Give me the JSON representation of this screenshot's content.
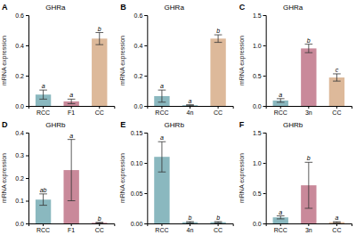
{
  "chart_data": [
    {
      "type": "bar",
      "label": "A",
      "title": "GHRa",
      "ylabel": "mRNA expression",
      "categories": [
        "RCC",
        "F1",
        "CC"
      ],
      "values": [
        0.075,
        0.03,
        0.445
      ],
      "errors": [
        0.03,
        0.015,
        0.04
      ],
      "annotations": [
        "a",
        "a",
        "b"
      ],
      "colors": [
        "#8ab8bf",
        "#c9899a",
        "#ddb99a"
      ],
      "ylim": [
        0,
        0.6
      ],
      "yticks": [
        {
          "value": 0.0,
          "label": "0.0"
        },
        0.2,
        0.4,
        0.6
      ]
    },
    {
      "type": "bar",
      "label": "B",
      "title": "GHRa",
      "ylabel": "mRNA expression",
      "categories": [
        "RCC",
        "4n",
        "CC"
      ],
      "values": [
        0.065,
        0.005,
        0.445
      ],
      "errors": [
        0.04,
        0.003,
        0.025
      ],
      "annotations": [
        "a",
        "a",
        "b"
      ],
      "colors": [
        "#8ab8bf",
        "#8ab8bf",
        "#ddb99a"
      ],
      "ylim": [
        0,
        0.6
      ],
      "yticks": [
        {
          "value": 0.0,
          "label": "0.0"
        },
        0.2,
        0.4,
        0.6
      ]
    },
    {
      "type": "bar",
      "label": "C",
      "title": "GHRa",
      "ylabel": "mRNA expression",
      "categories": [
        "RCC",
        "3n",
        "CC"
      ],
      "values": [
        0.09,
        0.95,
        0.47
      ],
      "errors": [
        0.03,
        0.07,
        0.06
      ],
      "annotations": [
        "a",
        "b",
        "c"
      ],
      "colors": [
        "#8ab8bf",
        "#c9899a",
        "#ddb99a"
      ],
      "ylim": [
        0,
        1.5
      ],
      "yticks": [
        {
          "value": 0.0,
          "label": "0.0"
        },
        0.5,
        {
          "value": 1.0,
          "label": "1.0"
        },
        1.5
      ]
    },
    {
      "type": "bar",
      "label": "D",
      "title": "GHRb",
      "ylabel": "mRNA expression",
      "categories": [
        "RCC",
        "F1",
        "CC"
      ],
      "values": [
        0.105,
        0.235,
        0.003
      ],
      "errors": [
        0.025,
        0.135,
        0.002
      ],
      "annotations": [
        "ab",
        "a",
        "b"
      ],
      "colors": [
        "#8ab8bf",
        "#c9899a",
        "#c9899a"
      ],
      "ylim": [
        0,
        0.4
      ],
      "yticks": [
        {
          "value": 0.0,
          "label": "0.0"
        },
        0.1,
        0.2,
        0.3,
        0.4
      ]
    },
    {
      "type": "bar",
      "label": "E",
      "title": "GHRb",
      "ylabel": "mRNA expression",
      "categories": [
        "RCC",
        "4n",
        "CC"
      ],
      "values": [
        0.11,
        0.002,
        0.002
      ],
      "errors": [
        0.025,
        0.001,
        0.001
      ],
      "annotations": [
        "a",
        "b",
        "b"
      ],
      "colors": [
        "#8ab8bf",
        "#8ab8bf",
        "#8ab8bf"
      ],
      "ylim": [
        0,
        0.15
      ],
      "yticks": [
        {
          "value": 0.0,
          "label": "0.00"
        },
        0.05,
        {
          "value": 0.1,
          "label": "0.10"
        },
        0.15
      ]
    },
    {
      "type": "bar",
      "label": "F",
      "title": "GHRb",
      "ylabel": "mRNA expression",
      "categories": [
        "RCC",
        "3n",
        "CC"
      ],
      "values": [
        0.1,
        0.63,
        0.02
      ],
      "errors": [
        0.025,
        0.38,
        0.008
      ],
      "annotations": [
        "a",
        "b",
        "a"
      ],
      "colors": [
        "#8ab8bf",
        "#c9899a",
        "#ddb99a"
      ],
      "ylim": [
        0,
        1.5
      ],
      "yticks": [
        {
          "value": 0.0,
          "label": "0.0"
        },
        0.5,
        {
          "value": 1.0,
          "label": "1.0"
        },
        1.5
      ]
    }
  ]
}
